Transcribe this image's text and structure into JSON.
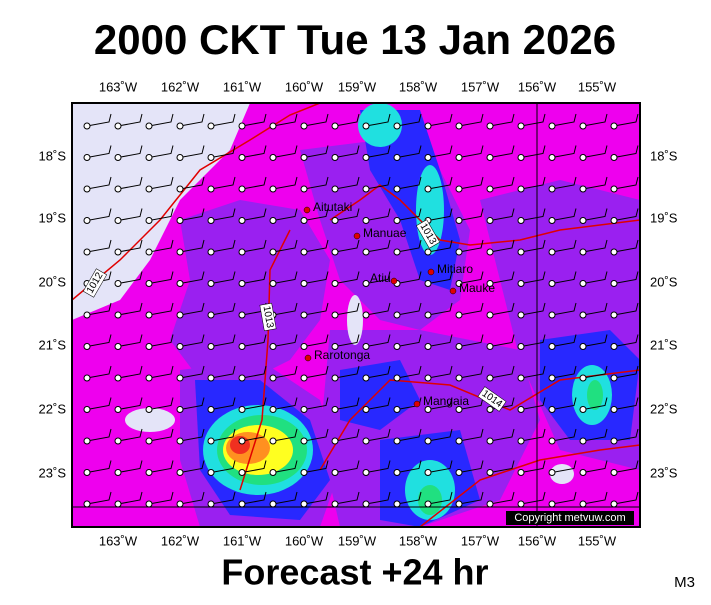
{
  "header": {
    "title": "2000 CKT Tue 13 Jan 2026"
  },
  "map": {
    "longitude_labels": [
      "163˚W",
      "162˚W",
      "161˚W",
      "160˚W",
      "159˚W",
      "158˚W",
      "157˚W",
      "156˚W",
      "155˚W"
    ],
    "latitude_labels": [
      "18˚S",
      "19˚S",
      "20˚S",
      "21˚S",
      "22˚S",
      "23˚S"
    ],
    "places": [
      "Aitutaki",
      "Manuae",
      "Atiu",
      "Mitiaro",
      "Mauke",
      "Rarotonga",
      "Mangaia"
    ],
    "isobar_labels": [
      "1012",
      "1013",
      "1013",
      "1014"
    ],
    "copyright": "Copyright metvuw.com"
  },
  "footer": {
    "forecast": "Forecast +24 hr",
    "model": "M3"
  }
}
